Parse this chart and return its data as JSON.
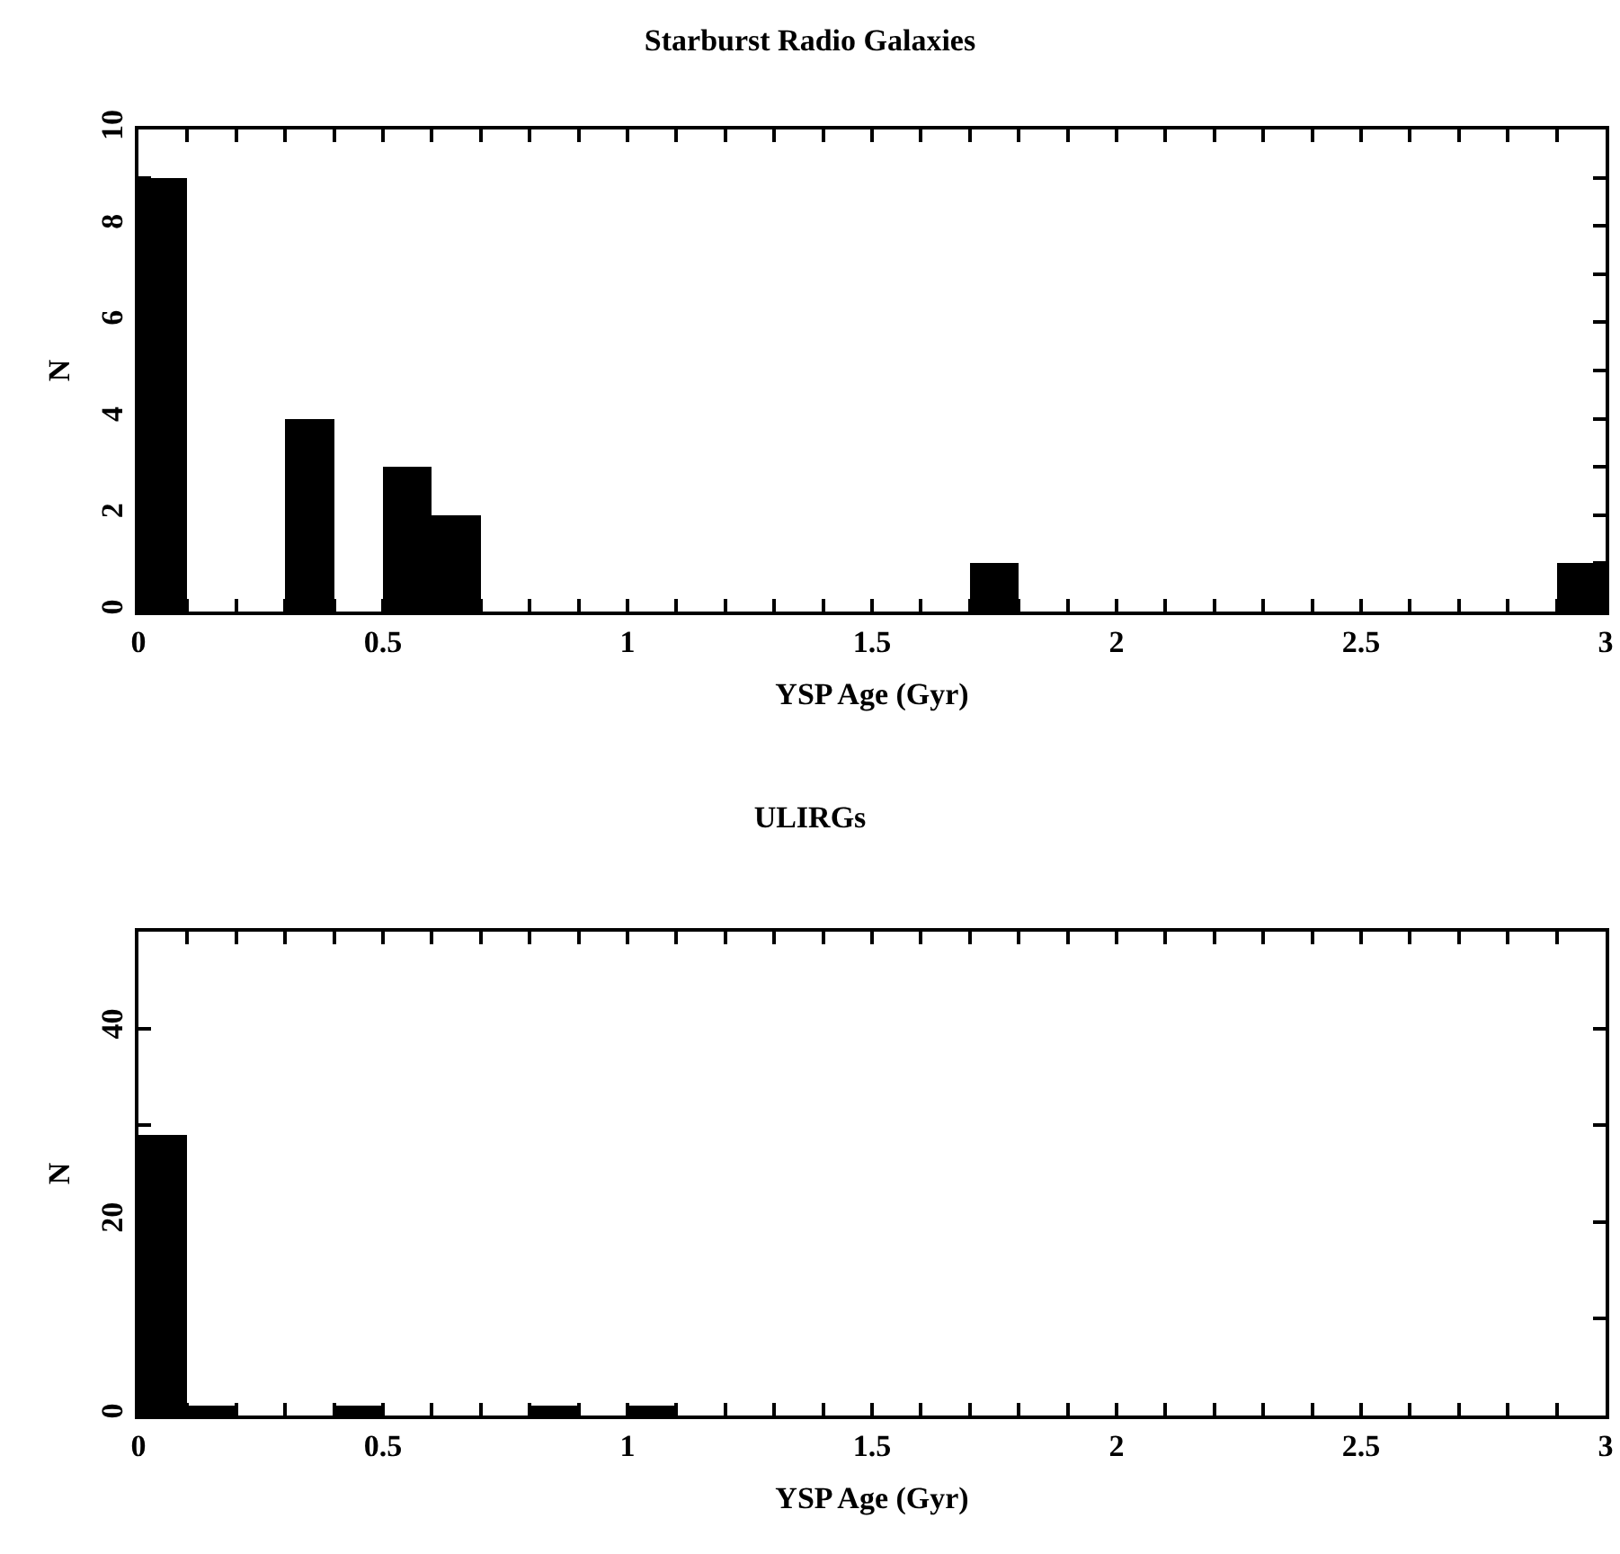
{
  "chart_data": [
    {
      "type": "histogram",
      "title": "Starburst Radio Galaxies",
      "xlabel": "YSP Age (Gyr)",
      "ylabel": "N",
      "color": "#000000",
      "bins": [
        0,
        0.1,
        0.2,
        0.3,
        0.4,
        0.5,
        0.6,
        0.7,
        0.8,
        0.9,
        1,
        1.1,
        1.2,
        1.3,
        1.4,
        1.5,
        1.6,
        1.7,
        1.8,
        1.9,
        2,
        2.1,
        2.2,
        2.3,
        2.4,
        2.5,
        2.6,
        2.7,
        2.8,
        2.9,
        3
      ],
      "values": [
        9,
        0,
        0,
        4,
        0,
        3,
        2,
        0,
        0,
        0,
        0,
        0,
        0,
        0,
        0,
        0,
        0,
        1,
        0,
        0,
        0,
        0,
        0,
        0,
        0,
        0,
        0,
        0,
        0,
        1
      ],
      "xlim": [
        0,
        3
      ],
      "ylim": [
        0,
        10
      ],
      "xticks": [
        0,
        {
          "value": 0.1,
          "label": null
        },
        {
          "value": 0.2,
          "label": null
        },
        {
          "value": 0.3,
          "label": null
        },
        {
          "value": 0.4,
          "label": null
        },
        0.5,
        {
          "value": 0.6,
          "label": null
        },
        {
          "value": 0.7,
          "label": null
        },
        {
          "value": 0.8,
          "label": null
        },
        {
          "value": 0.9,
          "label": null
        },
        1,
        {
          "value": 1.1,
          "label": null
        },
        {
          "value": 1.2,
          "label": null
        },
        {
          "value": 1.3,
          "label": null
        },
        {
          "value": 1.4,
          "label": null
        },
        1.5,
        {
          "value": 1.6,
          "label": null
        },
        {
          "value": 1.7,
          "label": null
        },
        {
          "value": 1.8,
          "label": null
        },
        {
          "value": 1.9,
          "label": null
        },
        2,
        {
          "value": 2.1,
          "label": null
        },
        {
          "value": 2.2,
          "label": null
        },
        {
          "value": 2.3,
          "label": null
        },
        {
          "value": 2.4,
          "label": null
        },
        2.5,
        {
          "value": 2.6,
          "label": null
        },
        {
          "value": 2.7,
          "label": null
        },
        {
          "value": 2.8,
          "label": null
        },
        {
          "value": 2.9,
          "label": null
        },
        3
      ],
      "yticks": [
        0,
        {
          "value": 1,
          "label": null
        },
        2,
        {
          "value": 3,
          "label": null
        },
        4,
        {
          "value": 5,
          "label": null
        },
        6,
        {
          "value": 7,
          "label": null
        },
        8,
        {
          "value": 9,
          "label": null
        },
        10
      ]
    },
    {
      "type": "histogram",
      "title": "ULIRGs",
      "xlabel": "YSP Age (Gyr)",
      "ylabel": "N",
      "color": "#000000",
      "bins": [
        0,
        0.1,
        0.2,
        0.3,
        0.4,
        0.5,
        0.6,
        0.7,
        0.8,
        0.9,
        1,
        1.1,
        1.2,
        1.3,
        1.4,
        1.5,
        1.6,
        1.7,
        1.8,
        1.9,
        2,
        2.1,
        2.2,
        2.3,
        2.4,
        2.5,
        2.6,
        2.7,
        2.8,
        2.9,
        3
      ],
      "values": [
        29,
        1,
        0,
        0,
        1,
        0,
        0,
        0,
        1,
        0,
        1,
        0,
        0,
        0,
        0,
        0,
        0,
        0,
        0,
        0,
        0,
        0,
        0,
        0,
        0,
        0,
        0,
        0,
        0,
        0
      ],
      "xlim": [
        0,
        3
      ],
      "ylim": [
        0,
        50
      ],
      "xticks": [
        0,
        {
          "value": 0.1,
          "label": null
        },
        {
          "value": 0.2,
          "label": null
        },
        {
          "value": 0.3,
          "label": null
        },
        {
          "value": 0.4,
          "label": null
        },
        0.5,
        {
          "value": 0.6,
          "label": null
        },
        {
          "value": 0.7,
          "label": null
        },
        {
          "value": 0.8,
          "label": null
        },
        {
          "value": 0.9,
          "label": null
        },
        1,
        {
          "value": 1.1,
          "label": null
        },
        {
          "value": 1.2,
          "label": null
        },
        {
          "value": 1.3,
          "label": null
        },
        {
          "value": 1.4,
          "label": null
        },
        1.5,
        {
          "value": 1.6,
          "label": null
        },
        {
          "value": 1.7,
          "label": null
        },
        {
          "value": 1.8,
          "label": null
        },
        {
          "value": 1.9,
          "label": null
        },
        2,
        {
          "value": 2.1,
          "label": null
        },
        {
          "value": 2.2,
          "label": null
        },
        {
          "value": 2.3,
          "label": null
        },
        {
          "value": 2.4,
          "label": null
        },
        2.5,
        {
          "value": 2.6,
          "label": null
        },
        {
          "value": 2.7,
          "label": null
        },
        {
          "value": 2.8,
          "label": null
        },
        {
          "value": 2.9,
          "label": null
        },
        3
      ],
      "yticks": [
        0,
        {
          "value": 10,
          "label": null
        },
        20,
        {
          "value": 30,
          "label": null
        },
        40,
        {
          "value": 50,
          "label": null
        }
      ]
    }
  ]
}
